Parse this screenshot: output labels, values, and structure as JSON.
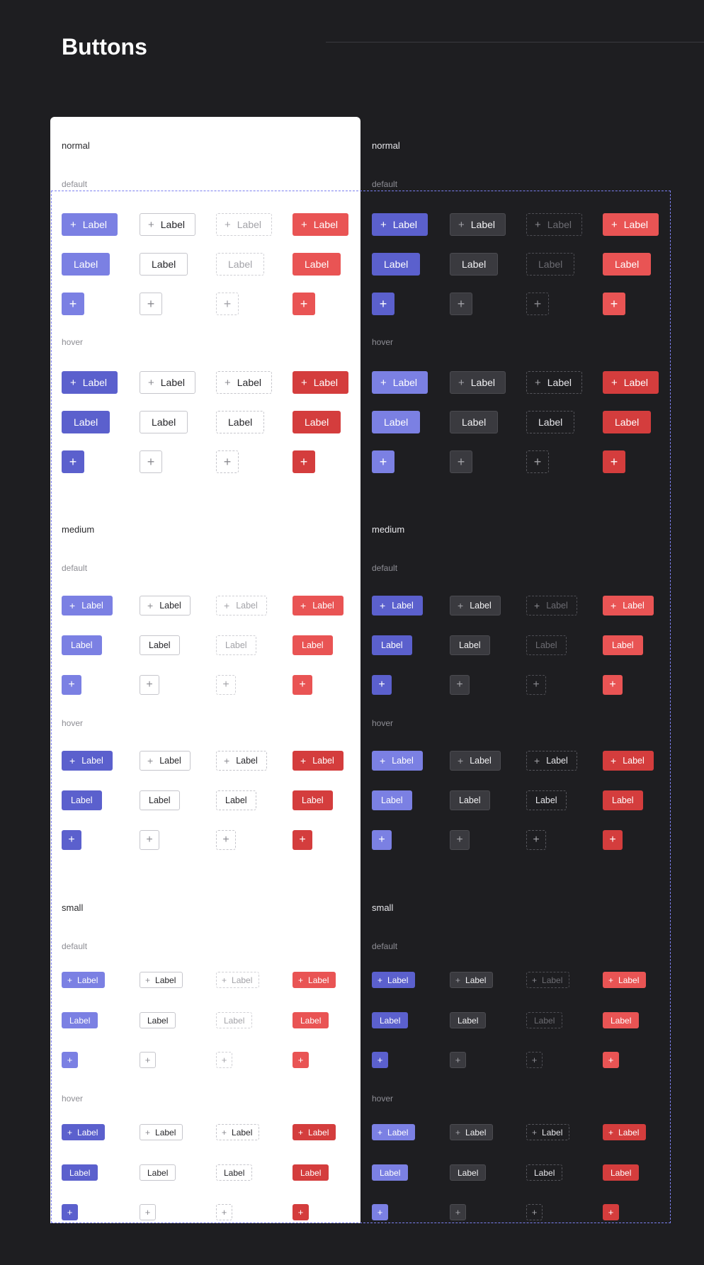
{
  "page": {
    "title": "Buttons"
  },
  "themes": [
    {
      "key": "light",
      "variants_note": ""
    },
    {
      "key": "dark",
      "variants_note": ""
    }
  ],
  "sizes": [
    {
      "key": "lg",
      "title": "normal"
    },
    {
      "key": "md",
      "title": "medium"
    },
    {
      "key": "sm",
      "title": "small"
    }
  ],
  "states": [
    {
      "key": "default",
      "label": "default"
    },
    {
      "key": "hover",
      "label": "hover"
    }
  ],
  "variants": [
    "primary",
    "secondary",
    "ghost",
    "danger"
  ],
  "button": {
    "label": "Label",
    "icon": "plus-icon",
    "icon_glyph": "+"
  },
  "colors": {
    "page_background": "#1e1e21",
    "light_panel": "#ffffff",
    "frame_dash": "#7b7ff0",
    "primary": "#7b80e3",
    "primary_strong": "#5b60cd",
    "danger": "#e95454",
    "danger_strong": "#d43d3d",
    "dark_secondary": "#3a3a3f"
  }
}
